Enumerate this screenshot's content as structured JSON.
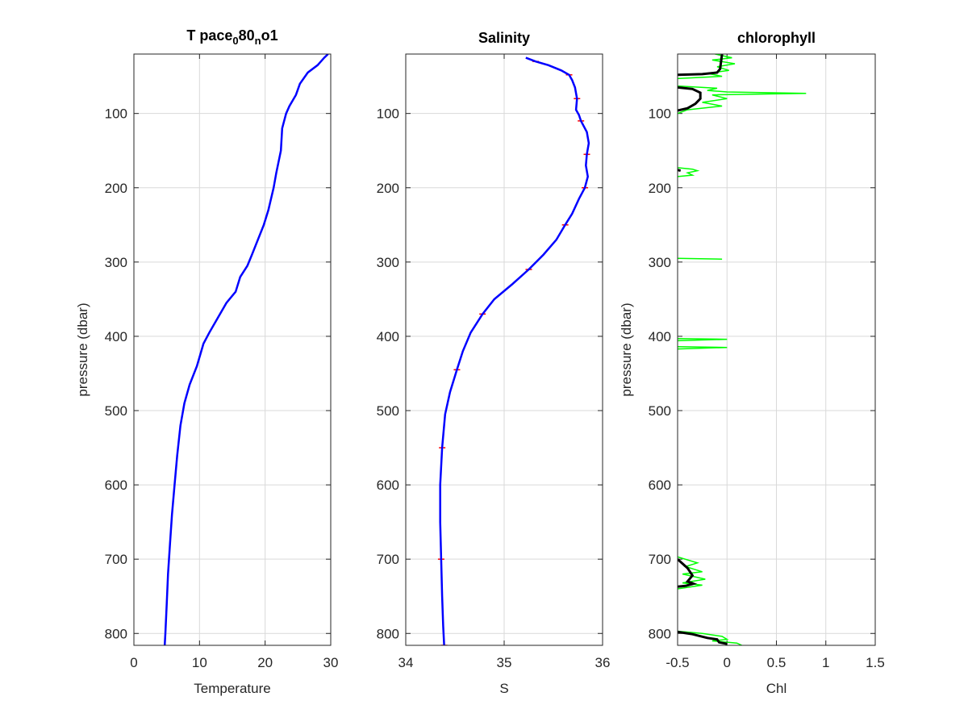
{
  "chart_data": [
    {
      "type": "line",
      "title": "T pace_0 80_n o1",
      "title_parts": [
        "T pace",
        "0",
        "80",
        "n",
        "o1"
      ],
      "xlabel": "Temperature",
      "ylabel": "pressure (dbar)",
      "xlim": [
        0,
        30
      ],
      "ylim": [
        20,
        816
      ],
      "y_reversed": true,
      "xticks": [
        "0",
        "10",
        "20",
        "30"
      ],
      "yticks": [
        "100",
        "200",
        "300",
        "400",
        "500",
        "600",
        "700",
        "800"
      ],
      "grid": true,
      "colors": {
        "line": "#0000ff"
      },
      "series": [
        {
          "values": [
            [
              29.6,
              20
            ],
            [
              29.0,
              25
            ],
            [
              28.0,
              35
            ],
            [
              26.5,
              45
            ],
            [
              25.3,
              60
            ],
            [
              24.7,
              75
            ],
            [
              23.7,
              90
            ],
            [
              23.2,
              100
            ],
            [
              22.6,
              120
            ],
            [
              22.4,
              150
            ],
            [
              21.7,
              180
            ],
            [
              21.3,
              200
            ],
            [
              20.5,
              230
            ],
            [
              19.8,
              250
            ],
            [
              18.9,
              270
            ],
            [
              18.0,
              290
            ],
            [
              17.3,
              305
            ],
            [
              16.2,
              320
            ],
            [
              15.5,
              340
            ],
            [
              14.1,
              355
            ],
            [
              12.8,
              375
            ],
            [
              11.5,
              395
            ],
            [
              10.6,
              410
            ],
            [
              9.6,
              440
            ],
            [
              8.5,
              465
            ],
            [
              7.7,
              490
            ],
            [
              7.1,
              520
            ],
            [
              6.6,
              560
            ],
            [
              6.2,
              600
            ],
            [
              5.8,
              640
            ],
            [
              5.5,
              680
            ],
            [
              5.2,
              720
            ],
            [
              5.0,
              760
            ],
            [
              4.8,
              800
            ],
            [
              4.7,
              816
            ]
          ]
        }
      ]
    },
    {
      "type": "line",
      "title": "Salinity",
      "xlabel": "S",
      "ylabel": "",
      "xlim": [
        34,
        36
      ],
      "ylim": [
        20,
        816
      ],
      "y_reversed": true,
      "xticks": [
        "34",
        "35",
        "36"
      ],
      "yticks": [
        "100",
        "200",
        "300",
        "400",
        "500",
        "600",
        "700",
        "800"
      ],
      "grid": true,
      "colors": {
        "line": "#0000ff",
        "raw": "#ff0000"
      },
      "series": [
        {
          "values": [
            [
              35.22,
              25
            ],
            [
              35.32,
              30
            ],
            [
              35.45,
              35
            ],
            [
              35.58,
              42
            ],
            [
              35.66,
              48
            ],
            [
              35.69,
              55
            ],
            [
              35.72,
              65
            ],
            [
              35.74,
              80
            ],
            [
              35.73,
              95
            ],
            [
              35.76,
              102
            ],
            [
              35.78,
              110
            ],
            [
              35.84,
              125
            ],
            [
              35.86,
              140
            ],
            [
              35.84,
              155
            ],
            [
              35.83,
              170
            ],
            [
              35.85,
              185
            ],
            [
              35.82,
              200
            ],
            [
              35.76,
              215
            ],
            [
              35.69,
              235
            ],
            [
              35.62,
              250
            ],
            [
              35.53,
              270
            ],
            [
              35.4,
              290
            ],
            [
              35.25,
              310
            ],
            [
              35.08,
              330
            ],
            [
              34.9,
              350
            ],
            [
              34.78,
              370
            ],
            [
              34.66,
              395
            ],
            [
              34.58,
              420
            ],
            [
              34.52,
              445
            ],
            [
              34.45,
              475
            ],
            [
              34.4,
              505
            ],
            [
              34.37,
              550
            ],
            [
              34.35,
              600
            ],
            [
              34.35,
              650
            ],
            [
              34.36,
              700
            ],
            [
              34.37,
              750
            ],
            [
              34.38,
              790
            ],
            [
              34.39,
              816
            ]
          ]
        }
      ]
    },
    {
      "type": "line",
      "title": "chlorophyll",
      "xlabel": "Chl",
      "ylabel": "pressure (dbar)",
      "xlim": [
        -0.5,
        1.5
      ],
      "ylim": [
        20,
        816
      ],
      "y_reversed": true,
      "xticks": [
        "-0.5",
        "0",
        "0.5",
        "1",
        "1.5"
      ],
      "yticks": [
        "100",
        "200",
        "300",
        "400",
        "500",
        "600",
        "700",
        "800"
      ],
      "grid": true,
      "colors": {
        "smoothed": "#000000",
        "raw": "#00ff00"
      },
      "series": [
        {
          "segments": [
            [
              [
                -0.05,
                20
              ],
              [
                -0.06,
                30
              ],
              [
                -0.07,
                40
              ],
              [
                -0.1,
                45
              ],
              [
                -0.25,
                47
              ],
              [
                -0.5,
                48
              ]
            ],
            [
              [
                -0.5,
                65
              ],
              [
                -0.35,
                67
              ],
              [
                -0.27,
                72
              ],
              [
                -0.27,
                80
              ],
              [
                -0.32,
                87
              ],
              [
                -0.4,
                93
              ],
              [
                -0.5,
                96
              ]
            ],
            [
              [
                -0.5,
                176
              ],
              [
                -0.47,
                177
              ]
            ],
            [
              [
                -0.5,
                700
              ],
              [
                -0.4,
                712
              ],
              [
                -0.35,
                722
              ],
              [
                -0.4,
                730
              ],
              [
                -0.34,
                733
              ],
              [
                -0.42,
                736
              ],
              [
                -0.5,
                737
              ]
            ],
            [
              [
                -0.5,
                798
              ],
              [
                -0.35,
                801
              ],
              [
                -0.2,
                806
              ],
              [
                -0.1,
                808
              ],
              [
                -0.08,
                812
              ],
              [
                0.0,
                814
              ]
            ]
          ]
        },
        {
          "segments": [
            [
              [
                -0.12,
                20
              ],
              [
                0.05,
                25
              ],
              [
                -0.15,
                28
              ],
              [
                0.08,
                33
              ],
              [
                -0.1,
                37
              ],
              [
                0.02,
                42
              ],
              [
                -0.2,
                46
              ],
              [
                -0.05,
                50
              ],
              [
                -0.5,
                53
              ]
            ],
            [
              [
                -0.5,
                63
              ],
              [
                -0.1,
                66
              ],
              [
                -0.2,
                69
              ],
              [
                0.0,
                71
              ],
              [
                0.8,
                73
              ],
              [
                -0.15,
                75
              ],
              [
                0.0,
                80
              ],
              [
                -0.25,
                85
              ],
              [
                -0.05,
                90
              ],
              [
                -0.4,
                95
              ],
              [
                -0.5,
                100
              ]
            ],
            [
              [
                -0.5,
                173
              ],
              [
                -0.35,
                175
              ],
              [
                -0.3,
                177
              ],
              [
                -0.4,
                180
              ],
              [
                -0.35,
                183
              ],
              [
                -0.5,
                185
              ]
            ],
            [
              [
                -0.5,
                295
              ],
              [
                -0.05,
                296
              ]
            ],
            [
              [
                -0.5,
                403
              ],
              [
                0.0,
                404
              ],
              [
                -0.5,
                406
              ]
            ],
            [
              [
                -0.5,
                414
              ],
              [
                0.0,
                415
              ],
              [
                -0.5,
                417
              ]
            ],
            [
              [
                -0.5,
                697
              ],
              [
                -0.3,
                705
              ],
              [
                -0.42,
                710
              ],
              [
                -0.25,
                717
              ],
              [
                -0.45,
                720
              ],
              [
                -0.22,
                727
              ],
              [
                -0.45,
                732
              ],
              [
                -0.25,
                735
              ],
              [
                -0.5,
                740
              ]
            ],
            [
              [
                -0.5,
                797
              ],
              [
                -0.25,
                800
              ],
              [
                -0.05,
                804
              ],
              [
                0.0,
                808
              ],
              [
                -0.15,
                810
              ],
              [
                0.1,
                813
              ],
              [
                0.15,
                816
              ]
            ]
          ]
        }
      ]
    }
  ]
}
